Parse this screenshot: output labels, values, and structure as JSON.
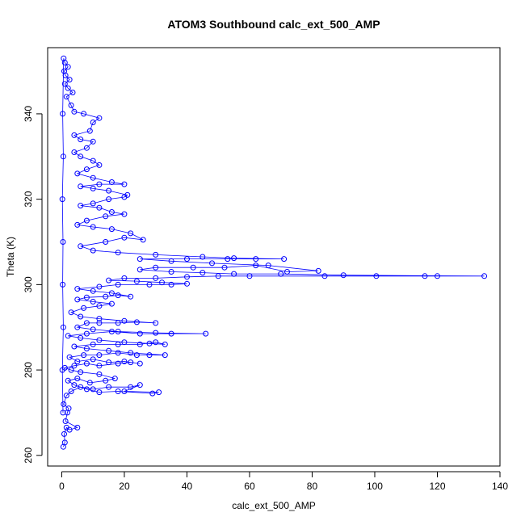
{
  "chart_data": {
    "type": "scatter",
    "title": "ATOM3 Southbound calc_ext_500_AMP",
    "xlabel": "calc_ext_500_AMP",
    "ylabel": "Theta (K)",
    "xlim": [
      -4.5,
      140
    ],
    "ylim": [
      257.5,
      355.5
    ],
    "x_ticks": [
      0,
      20,
      40,
      60,
      80,
      100,
      120,
      140
    ],
    "y_ticks": [
      260,
      280,
      300,
      320,
      340
    ],
    "connected": true,
    "marker": "open-circle",
    "grid": false,
    "legend": "none",
    "series_color": "#0000ff",
    "points": [
      [
        0.5,
        262
      ],
      [
        1.0,
        263
      ],
      [
        0.8,
        265
      ],
      [
        1.5,
        266.5
      ],
      [
        2.5,
        266
      ],
      [
        5.0,
        266.5
      ],
      [
        1.2,
        268
      ],
      [
        1.8,
        270
      ],
      [
        2.2,
        271
      ],
      [
        0.6,
        272
      ],
      [
        1.5,
        274
      ],
      [
        3.0,
        275
      ],
      [
        6.0,
        276
      ],
      [
        10.0,
        275.5
      ],
      [
        15.0,
        276
      ],
      [
        22.0,
        276
      ],
      [
        25.0,
        276.5
      ],
      [
        20.0,
        275
      ],
      [
        31.0,
        274.8
      ],
      [
        29.0,
        274.5
      ],
      [
        18.0,
        275
      ],
      [
        12.0,
        274.8
      ],
      [
        8.0,
        275.5
      ],
      [
        4.0,
        276.5
      ],
      [
        2.0,
        277.5
      ],
      [
        5.0,
        278
      ],
      [
        9.0,
        277
      ],
      [
        14.0,
        277.5
      ],
      [
        17.0,
        278
      ],
      [
        12.0,
        279
      ],
      [
        6.0,
        279.5
      ],
      [
        3.0,
        280
      ],
      [
        1.0,
        280.5
      ],
      [
        4.0,
        281
      ],
      [
        8.0,
        281.5
      ],
      [
        12.0,
        281
      ],
      [
        18.0,
        281.5
      ],
      [
        22.0,
        281.8
      ],
      [
        25.0,
        281.5
      ],
      [
        20.0,
        282
      ],
      [
        15.0,
        281.8
      ],
      [
        10.0,
        282.5
      ],
      [
        5.0,
        282
      ],
      [
        2.5,
        283
      ],
      [
        7.0,
        283.5
      ],
      [
        12.0,
        283.5
      ],
      [
        18.0,
        284
      ],
      [
        24.0,
        283.5
      ],
      [
        28.0,
        283.5
      ],
      [
        33.0,
        283.5
      ],
      [
        22.0,
        284
      ],
      [
        15.0,
        284.5
      ],
      [
        8.0,
        285
      ],
      [
        4.0,
        285.5
      ],
      [
        10.0,
        286
      ],
      [
        18.0,
        286
      ],
      [
        25.0,
        286
      ],
      [
        30.0,
        286.5
      ],
      [
        33.0,
        286
      ],
      [
        28.0,
        286.2
      ],
      [
        20.0,
        286.5
      ],
      [
        12.0,
        287
      ],
      [
        6.0,
        287.5
      ],
      [
        2.0,
        288
      ],
      [
        8.0,
        288.5
      ],
      [
        16.0,
        289
      ],
      [
        25.0,
        288.5
      ],
      [
        35.0,
        288.5
      ],
      [
        46.0,
        288.5
      ],
      [
        30.0,
        288.7
      ],
      [
        18.0,
        289
      ],
      [
        10.0,
        289.5
      ],
      [
        5.0,
        290
      ],
      [
        8.0,
        291
      ],
      [
        12.0,
        291
      ],
      [
        18.0,
        291
      ],
      [
        24.0,
        291.2
      ],
      [
        30.0,
        291
      ],
      [
        20.0,
        291.5
      ],
      [
        12.0,
        292
      ],
      [
        6.0,
        292.5
      ],
      [
        3.0,
        293.5
      ],
      [
        7.0,
        294.5
      ],
      [
        12.0,
        295
      ],
      [
        16.0,
        295.5
      ],
      [
        10.0,
        296
      ],
      [
        5.0,
        296.5
      ],
      [
        8.0,
        297
      ],
      [
        14.0,
        297.2
      ],
      [
        18.0,
        297.5
      ],
      [
        22.0,
        297.2
      ],
      [
        16.0,
        298
      ],
      [
        10.0,
        298.5
      ],
      [
        5.0,
        299
      ],
      [
        12.0,
        299.5
      ],
      [
        18.0,
        300
      ],
      [
        28.0,
        300
      ],
      [
        35.0,
        300
      ],
      [
        40.0,
        300.2
      ],
      [
        32.0,
        300.5
      ],
      [
        24.0,
        300.8
      ],
      [
        15.0,
        301
      ],
      [
        20.0,
        301.5
      ],
      [
        30.0,
        301.5
      ],
      [
        40.0,
        301.8
      ],
      [
        50.0,
        302
      ],
      [
        60.0,
        302
      ],
      [
        84.0,
        302
      ],
      [
        100.5,
        302
      ],
      [
        116.0,
        302
      ],
      [
        120.0,
        302
      ],
      [
        135.0,
        302
      ],
      [
        90.0,
        302.2
      ],
      [
        70.0,
        302.5
      ],
      [
        55.0,
        302.5
      ],
      [
        45.0,
        302.8
      ],
      [
        35.0,
        303
      ],
      [
        25.0,
        303.5
      ],
      [
        30.0,
        304
      ],
      [
        42.0,
        304
      ],
      [
        52.0,
        304
      ],
      [
        62.0,
        304.5
      ],
      [
        72.0,
        303
      ],
      [
        82.0,
        303.2
      ],
      [
        66.0,
        304.5
      ],
      [
        48.0,
        305
      ],
      [
        35.0,
        305.5
      ],
      [
        25.0,
        306
      ],
      [
        40.0,
        306
      ],
      [
        53.0,
        306
      ],
      [
        62.0,
        306
      ],
      [
        71.0,
        306
      ],
      [
        55.0,
        306.2
      ],
      [
        45.0,
        306.5
      ],
      [
        30.0,
        307
      ],
      [
        18.0,
        307.5
      ],
      [
        10.0,
        308
      ],
      [
        6.0,
        309
      ],
      [
        14.0,
        310
      ],
      [
        20.0,
        311
      ],
      [
        26.0,
        310.5
      ],
      [
        22.0,
        312
      ],
      [
        16.0,
        313
      ],
      [
        10.0,
        313.5
      ],
      [
        5.0,
        314
      ],
      [
        8.0,
        315
      ],
      [
        14.0,
        316
      ],
      [
        20.0,
        316.5
      ],
      [
        16.0,
        317
      ],
      [
        12.0,
        318
      ],
      [
        6.0,
        318.5
      ],
      [
        10.0,
        319
      ],
      [
        15.0,
        320
      ],
      [
        20.0,
        320.5
      ],
      [
        21.0,
        321
      ],
      [
        15.0,
        322
      ],
      [
        10.0,
        322.5
      ],
      [
        6.0,
        323
      ],
      [
        12.0,
        323.5
      ],
      [
        20.0,
        323.5
      ],
      [
        16.0,
        324
      ],
      [
        10.0,
        325
      ],
      [
        5.0,
        326
      ],
      [
        8.0,
        327
      ],
      [
        12.0,
        328
      ],
      [
        10.0,
        329
      ],
      [
        6.0,
        330
      ],
      [
        4.0,
        331
      ],
      [
        8.0,
        332
      ],
      [
        10.0,
        333.5
      ],
      [
        6.0,
        334
      ],
      [
        4.0,
        335
      ],
      [
        9.0,
        336
      ],
      [
        10.0,
        338
      ],
      [
        12.0,
        339
      ],
      [
        7.0,
        340
      ],
      [
        4.0,
        340.5
      ],
      [
        3.0,
        342
      ],
      [
        1.5,
        344
      ],
      [
        3.5,
        345
      ],
      [
        2.0,
        346
      ],
      [
        1.0,
        347
      ],
      [
        2.5,
        348
      ],
      [
        1.2,
        349
      ],
      [
        0.8,
        350
      ],
      [
        2.0,
        351
      ],
      [
        1.0,
        352
      ],
      [
        0.6,
        353
      ],
      [
        0.3,
        340
      ],
      [
        0.5,
        330
      ],
      [
        0.2,
        320
      ],
      [
        0.4,
        310
      ],
      [
        0.3,
        300
      ],
      [
        0.5,
        290
      ],
      [
        0.2,
        280
      ],
      [
        0.4,
        270
      ]
    ]
  }
}
